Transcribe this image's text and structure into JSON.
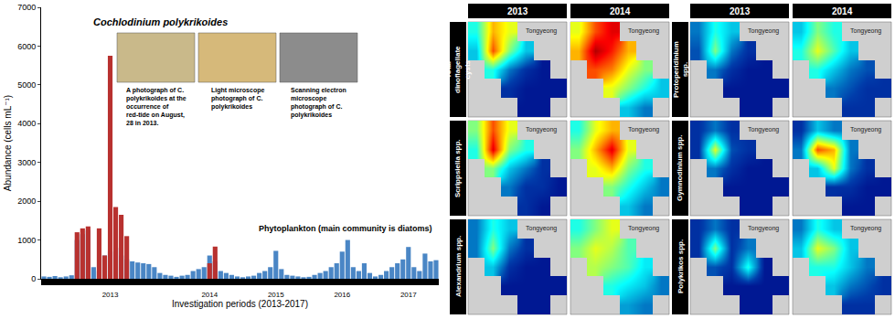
{
  "chart_data": [
    {
      "type": "bar",
      "xlabel": "Investigation periods (2013-2017)",
      "ylabel": "Abundance (cells mL⁻¹)",
      "ylim": [
        0,
        7000
      ],
      "yticks": [
        0,
        1000,
        2000,
        3000,
        4000,
        5000,
        6000,
        7000
      ],
      "grid": false,
      "stacked": false,
      "categories": [
        null,
        null,
        null,
        null,
        null,
        null,
        null,
        null,
        null,
        null,
        null,
        null,
        "2013",
        null,
        null,
        null,
        null,
        null,
        null,
        null,
        null,
        null,
        null,
        null,
        null,
        null,
        null,
        null,
        null,
        null,
        "2014",
        null,
        null,
        null,
        null,
        null,
        null,
        null,
        null,
        null,
        null,
        null,
        "2015",
        null,
        null,
        null,
        null,
        null,
        null,
        null,
        null,
        null,
        null,
        null,
        "2016",
        null,
        null,
        null,
        null,
        null,
        null,
        null,
        null,
        null,
        null,
        null,
        "2017",
        null,
        null,
        null,
        null,
        null
      ],
      "series": [
        {
          "name": "Phytoplankton (main community is diatoms)",
          "color": "#4a86c5",
          "values": [
            60,
            50,
            70,
            40,
            60,
            90,
            1000,
            1150,
            1250,
            300,
            200,
            600,
            700,
            800,
            600,
            500,
            450,
            420,
            400,
            380,
            300,
            150,
            100,
            80,
            50,
            80,
            100,
            200,
            250,
            300,
            600,
            450,
            200,
            150,
            100,
            60,
            40,
            60,
            80,
            150,
            200,
            300,
            720,
            250,
            100,
            80,
            60,
            40,
            50,
            100,
            150,
            200,
            300,
            400,
            700,
            1000,
            300,
            200,
            400,
            150,
            60,
            100,
            200,
            300,
            400,
            500,
            820,
            300,
            200,
            650,
            450,
            480
          ]
        },
        {
          "name": "Cochlodinium polykrikoides",
          "color": "#b8312f",
          "values": [
            0,
            0,
            0,
            0,
            0,
            0,
            1200,
            1300,
            1350,
            0,
            1300,
            600,
            5750,
            1850,
            1650,
            1100,
            0,
            0,
            0,
            0,
            0,
            0,
            0,
            0,
            0,
            0,
            0,
            0,
            0,
            0,
            400,
            830,
            0,
            0,
            0,
            0,
            0,
            0,
            0,
            0,
            0,
            0,
            0,
            0,
            0,
            0,
            0,
            0,
            0,
            0,
            0,
            0,
            0,
            0,
            0,
            0,
            0,
            0,
            0,
            0,
            0,
            0,
            0,
            0,
            0,
            0,
            0,
            0,
            0,
            0,
            0,
            0
          ]
        }
      ],
      "annotations": [
        "A photograph of C. polykrikoides at the occurrence of red-tide on August, 28 in 2013.",
        "Light microscope photograph of C. polykrikoides",
        "Scanning electron microscope photograph of C. polykrikoides"
      ]
    },
    {
      "type": "heatmap",
      "column_headers": [
        "2013",
        "2014"
      ],
      "place_label": "Tongyeong",
      "color": "Jet",
      "zlim": [
        0,
        100
      ],
      "rows": [
        {
          "label": "Total dinoflagellate cysts",
          "cells": [
            [
              [
                40,
                70,
                60,
                null,
                null,
                null
              ],
              [
                30,
                80,
                50,
                30,
                null,
                null
              ],
              [
                null,
                40,
                20,
                10,
                5,
                null
              ],
              [
                null,
                null,
                10,
                5,
                5,
                5
              ],
              [
                null,
                null,
                null,
                5,
                5,
                null
              ]
            ],
            [
              [
                60,
                80,
                90,
                null,
                null,
                null
              ],
              [
                70,
                95,
                85,
                70,
                null,
                null
              ],
              [
                null,
                80,
                75,
                60,
                50,
                null
              ],
              [
                null,
                null,
                60,
                50,
                40,
                30
              ],
              [
                null,
                null,
                null,
                30,
                20,
                null
              ]
            ]
          ]
        },
        {
          "label": "Scrippsiella spp.",
          "cells": [
            [
              [
                50,
                80,
                60,
                null,
                null,
                null
              ],
              [
                40,
                90,
                50,
                40,
                null,
                null
              ],
              [
                null,
                50,
                30,
                20,
                10,
                null
              ],
              [
                null,
                null,
                20,
                10,
                10,
                5
              ],
              [
                null,
                null,
                null,
                10,
                5,
                null
              ]
            ],
            [
              [
                40,
                60,
                70,
                null,
                null,
                null
              ],
              [
                50,
                70,
                90,
                60,
                null,
                null
              ],
              [
                null,
                60,
                70,
                50,
                40,
                null
              ],
              [
                null,
                null,
                50,
                40,
                30,
                20
              ],
              [
                null,
                null,
                null,
                30,
                20,
                null
              ]
            ]
          ]
        },
        {
          "label": "Alexandrium spp.",
          "cells": [
            [
              [
                20,
                40,
                30,
                null,
                null,
                null
              ],
              [
                20,
                50,
                20,
                10,
                null,
                null
              ],
              [
                null,
                30,
                10,
                5,
                5,
                null
              ],
              [
                null,
                null,
                5,
                5,
                5,
                5
              ],
              [
                null,
                null,
                null,
                5,
                5,
                null
              ]
            ],
            [
              [
                40,
                50,
                60,
                null,
                null,
                null
              ],
              [
                50,
                60,
                55,
                45,
                null,
                null
              ],
              [
                null,
                55,
                50,
                45,
                35,
                null
              ],
              [
                null,
                null,
                40,
                35,
                30,
                20
              ],
              [
                null,
                null,
                null,
                25,
                20,
                null
              ]
            ]
          ]
        },
        {
          "label": "Protoperidinium spp.",
          "cells": [
            [
              [
                20,
                40,
                30,
                null,
                null,
                null
              ],
              [
                15,
                50,
                20,
                10,
                null,
                null
              ],
              [
                null,
                20,
                10,
                5,
                5,
                null
              ],
              [
                null,
                null,
                5,
                5,
                5,
                5
              ],
              [
                null,
                null,
                null,
                5,
                5,
                null
              ]
            ],
            [
              [
                30,
                50,
                40,
                null,
                null,
                null
              ],
              [
                40,
                60,
                45,
                30,
                null,
                null
              ],
              [
                null,
                40,
                30,
                20,
                15,
                null
              ],
              [
                null,
                null,
                20,
                15,
                10,
                10
              ],
              [
                null,
                null,
                null,
                10,
                10,
                null
              ]
            ]
          ]
        },
        {
          "label": "Gymnodinium spp.",
          "cells": [
            [
              [
                10,
                20,
                10,
                null,
                null,
                null
              ],
              [
                10,
                60,
                15,
                10,
                null,
                null
              ],
              [
                null,
                20,
                10,
                5,
                5,
                null
              ],
              [
                null,
                null,
                5,
                5,
                5,
                5
              ],
              [
                null,
                null,
                null,
                5,
                5,
                null
              ]
            ],
            [
              [
                10,
                30,
                20,
                null,
                null,
                null
              ],
              [
                20,
                80,
                70,
                20,
                null,
                null
              ],
              [
                null,
                30,
                60,
                20,
                10,
                null
              ],
              [
                null,
                null,
                10,
                10,
                5,
                5
              ],
              [
                null,
                null,
                null,
                5,
                5,
                null
              ]
            ]
          ]
        },
        {
          "label": "Polykrikos spp.",
          "cells": [
            [
              [
                10,
                20,
                10,
                null,
                null,
                null
              ],
              [
                10,
                50,
                10,
                20,
                null,
                null
              ],
              [
                null,
                15,
                10,
                40,
                5,
                null
              ],
              [
                null,
                null,
                5,
                5,
                5,
                5
              ],
              [
                null,
                null,
                null,
                5,
                5,
                null
              ]
            ],
            [
              [
                20,
                40,
                30,
                null,
                null,
                null
              ],
              [
                30,
                60,
                50,
                30,
                null,
                null
              ],
              [
                null,
                40,
                40,
                30,
                20,
                null
              ],
              [
                null,
                null,
                30,
                20,
                15,
                10
              ],
              [
                null,
                null,
                null,
                10,
                10,
                null
              ]
            ]
          ]
        }
      ]
    }
  ]
}
